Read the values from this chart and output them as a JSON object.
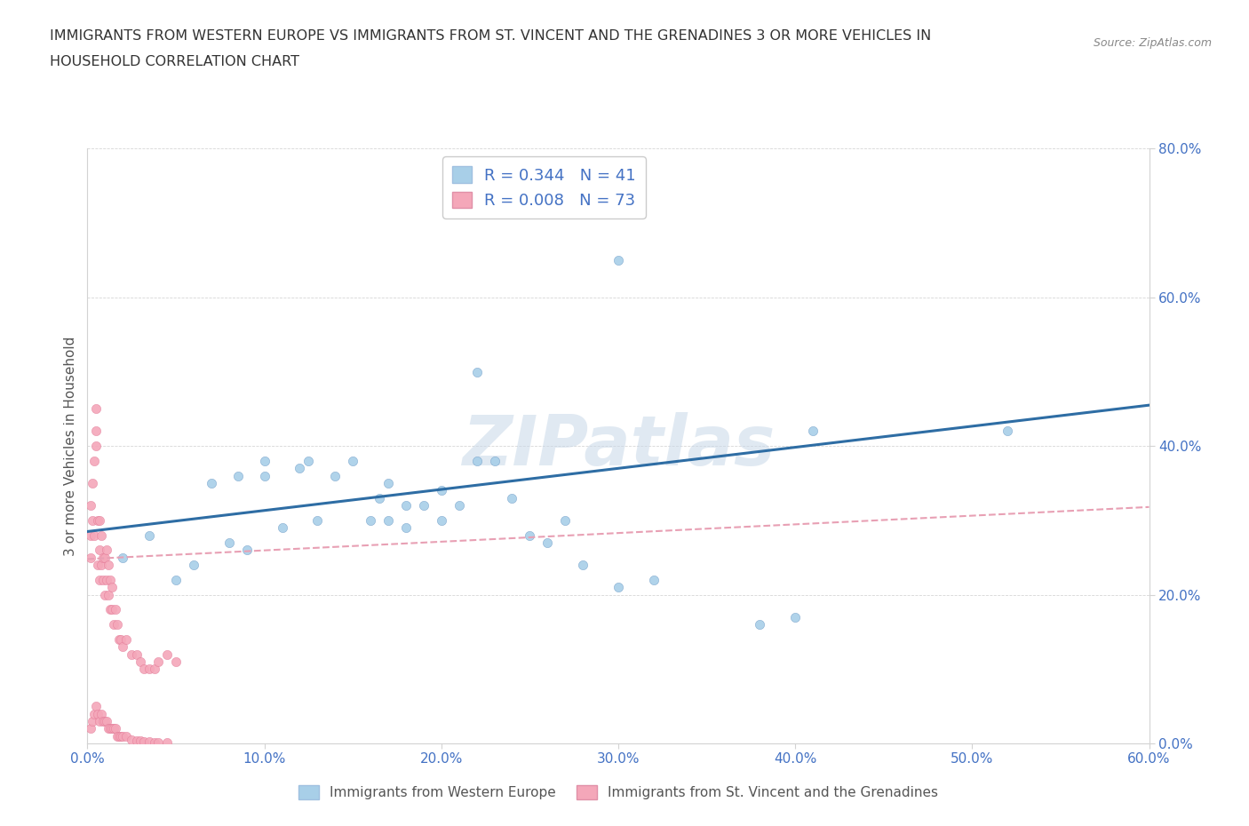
{
  "title_line1": "IMMIGRANTS FROM WESTERN EUROPE VS IMMIGRANTS FROM ST. VINCENT AND THE GRENADINES 3 OR MORE VEHICLES IN",
  "title_line2": "HOUSEHOLD CORRELATION CHART",
  "source_text": "Source: ZipAtlas.com",
  "ylabel": "3 or more Vehicles in Household",
  "legend_label1": "Immigrants from Western Europe",
  "legend_label2": "Immigrants from St. Vincent and the Grenadines",
  "R1": 0.344,
  "N1": 41,
  "R2": 0.008,
  "N2": 73,
  "color1": "#a8cfe8",
  "color2": "#f4a7b9",
  "line1_color": "#2e6da4",
  "line2_color": "#e8a0b4",
  "watermark": "ZIPatlas",
  "xlim": [
    0.0,
    0.6
  ],
  "ylim": [
    0.0,
    0.8
  ],
  "blue_x": [
    0.02,
    0.035,
    0.05,
    0.06,
    0.07,
    0.08,
    0.085,
    0.09,
    0.1,
    0.1,
    0.11,
    0.12,
    0.125,
    0.13,
    0.14,
    0.15,
    0.16,
    0.165,
    0.17,
    0.17,
    0.18,
    0.18,
    0.19,
    0.2,
    0.2,
    0.21,
    0.22,
    0.23,
    0.24,
    0.25,
    0.26,
    0.27,
    0.28,
    0.3,
    0.32,
    0.38,
    0.4,
    0.41,
    0.52,
    0.22,
    0.3
  ],
  "blue_y": [
    0.25,
    0.28,
    0.22,
    0.24,
    0.35,
    0.27,
    0.36,
    0.26,
    0.36,
    0.38,
    0.29,
    0.37,
    0.38,
    0.3,
    0.36,
    0.38,
    0.3,
    0.33,
    0.3,
    0.35,
    0.29,
    0.32,
    0.32,
    0.3,
    0.34,
    0.32,
    0.38,
    0.38,
    0.33,
    0.28,
    0.27,
    0.3,
    0.24,
    0.21,
    0.22,
    0.16,
    0.17,
    0.42,
    0.42,
    0.5,
    0.65
  ],
  "pink_x": [
    0.002,
    0.002,
    0.002,
    0.003,
    0.003,
    0.004,
    0.004,
    0.005,
    0.005,
    0.005,
    0.006,
    0.006,
    0.007,
    0.007,
    0.007,
    0.008,
    0.008,
    0.009,
    0.009,
    0.01,
    0.01,
    0.011,
    0.011,
    0.012,
    0.012,
    0.013,
    0.013,
    0.014,
    0.014,
    0.015,
    0.016,
    0.017,
    0.018,
    0.019,
    0.02,
    0.022,
    0.025,
    0.028,
    0.03,
    0.032,
    0.035,
    0.038,
    0.04,
    0.045,
    0.05,
    0.002,
    0.003,
    0.004,
    0.005,
    0.006,
    0.007,
    0.008,
    0.009,
    0.01,
    0.011,
    0.012,
    0.013,
    0.014,
    0.015,
    0.016,
    0.017,
    0.018,
    0.019,
    0.02,
    0.022,
    0.025,
    0.028,
    0.03,
    0.032,
    0.035,
    0.038,
    0.04,
    0.045
  ],
  "pink_y": [
    0.25,
    0.28,
    0.32,
    0.3,
    0.35,
    0.28,
    0.38,
    0.4,
    0.42,
    0.45,
    0.24,
    0.3,
    0.22,
    0.26,
    0.3,
    0.24,
    0.28,
    0.22,
    0.25,
    0.2,
    0.25,
    0.22,
    0.26,
    0.2,
    0.24,
    0.18,
    0.22,
    0.18,
    0.21,
    0.16,
    0.18,
    0.16,
    0.14,
    0.14,
    0.13,
    0.14,
    0.12,
    0.12,
    0.11,
    0.1,
    0.1,
    0.1,
    0.11,
    0.12,
    0.11,
    0.02,
    0.03,
    0.04,
    0.05,
    0.04,
    0.03,
    0.04,
    0.03,
    0.03,
    0.03,
    0.02,
    0.02,
    0.02,
    0.02,
    0.02,
    0.01,
    0.01,
    0.01,
    0.01,
    0.01,
    0.005,
    0.003,
    0.003,
    0.002,
    0.002,
    0.001,
    0.001,
    0.001
  ],
  "blue_line_x0": 0.0,
  "blue_line_y0": 0.285,
  "blue_line_x1": 0.6,
  "blue_line_y1": 0.455,
  "pink_line_x0": 0.0,
  "pink_line_y0": 0.248,
  "pink_line_x1": 0.6,
  "pink_line_y1": 0.318
}
